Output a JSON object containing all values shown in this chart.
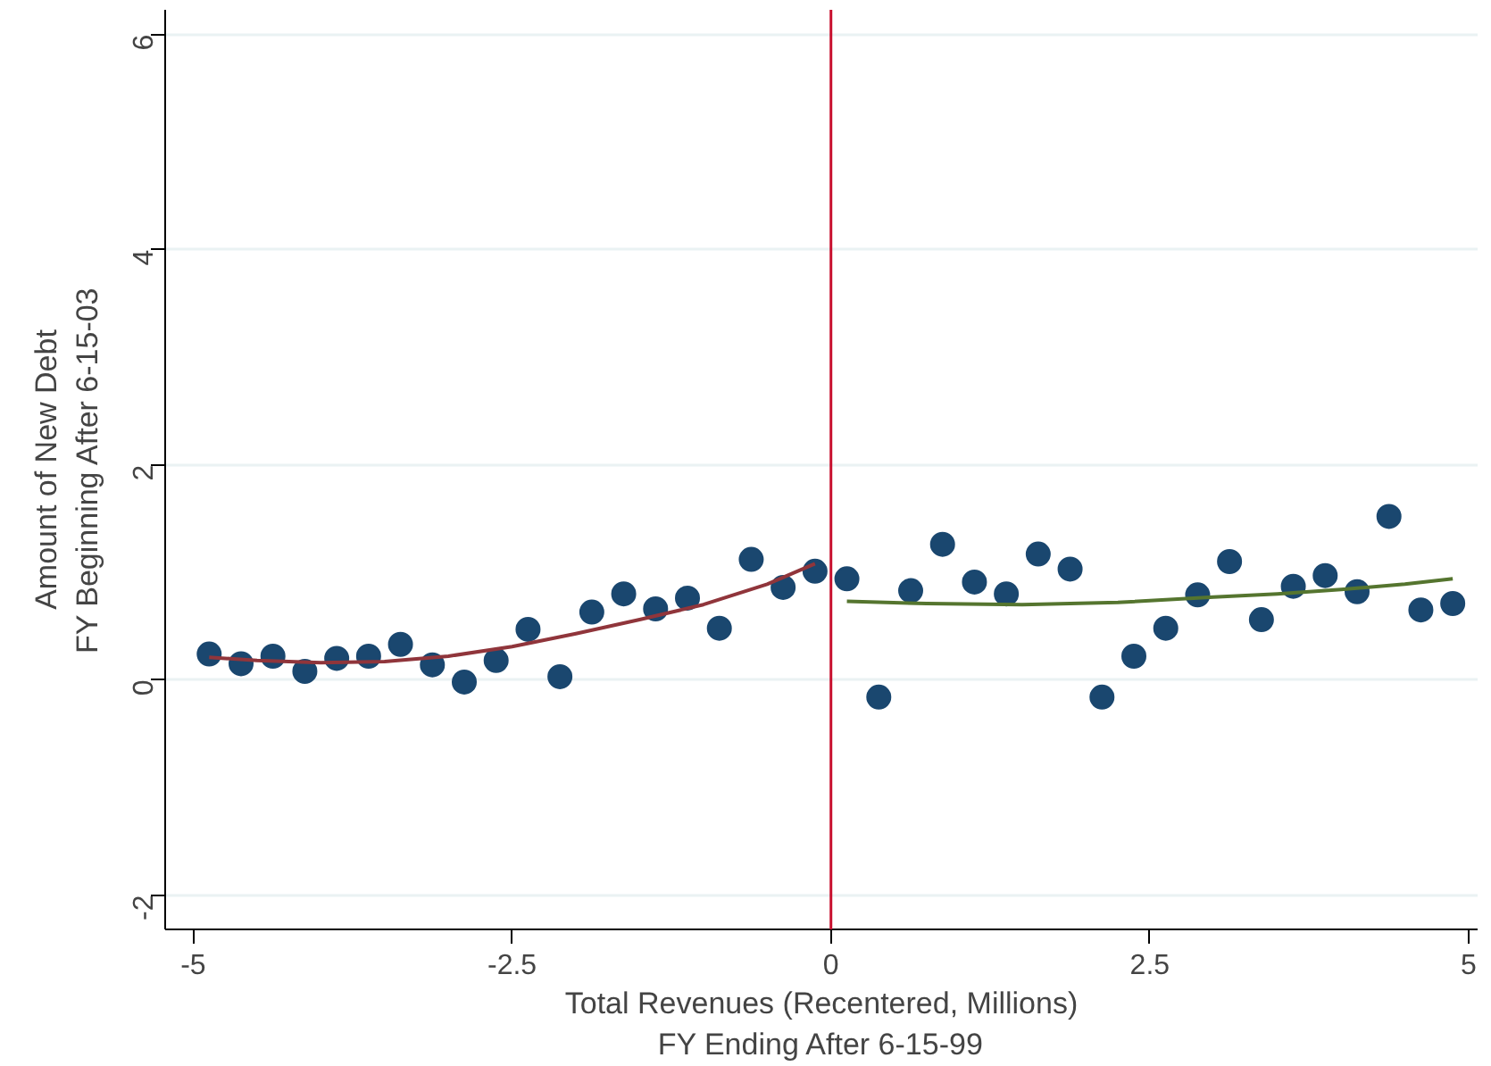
{
  "chart_data": {
    "type": "scatter",
    "xlabel": "Total Revenues (Recentered, Millions)\nFY Ending After 6-15-99",
    "ylabel": "Amount of New Debt\nFY Beginning After 6-15-03",
    "xlim": [
      -5.22,
      5.07
    ],
    "ylim": [
      -2.32,
      6.23
    ],
    "xticks": [
      {
        "value": -5,
        "label": "-5"
      },
      {
        "value": -2.5,
        "label": "-2.5"
      },
      {
        "value": 0,
        "label": "0"
      },
      {
        "value": 2.5,
        "label": "2.5"
      },
      {
        "value": 5,
        "label": "5"
      }
    ],
    "yticks": [
      -2,
      0,
      2,
      4,
      6
    ],
    "grid": "y",
    "ref_lines": [
      {
        "axis": "x",
        "value": 0,
        "color": "#c8102e"
      }
    ],
    "series": [
      {
        "marker": "circle",
        "color": "#1a476f",
        "x": [
          -4.875,
          -4.625,
          -4.375,
          -4.125,
          -3.875,
          -3.625,
          -3.375,
          -3.125,
          -2.875,
          -2.625,
          -2.375,
          -2.125,
          -1.875,
          -1.625,
          -1.375,
          -1.125,
          -0.875,
          -0.625,
          -0.375,
          -0.125,
          0.125,
          0.375,
          0.625,
          0.875,
          1.125,
          1.375,
          1.625,
          1.875,
          2.125,
          2.375,
          2.625,
          2.875,
          3.125,
          3.375,
          3.625,
          3.875,
          4.125,
          4.375,
          4.625,
          4.875
        ],
        "values": [
          0.24,
          0.15,
          0.22,
          0.08,
          0.2,
          0.22,
          0.33,
          0.14,
          -0.02,
          0.18,
          0.47,
          0.03,
          0.63,
          0.8,
          0.66,
          0.76,
          0.48,
          1.12,
          0.86,
          1.01,
          0.94,
          -0.16,
          0.83,
          1.26,
          0.91,
          0.8,
          1.17,
          1.03,
          -0.16,
          0.22,
          0.48,
          0.79,
          1.1,
          0.56,
          0.87,
          0.97,
          0.82,
          1.52,
          0.65,
          0.71
        ]
      },
      {
        "type": "line",
        "marker": "none",
        "color": "#90353b",
        "x": [
          -4.875,
          -4.5,
          -4.0,
          -3.5,
          -3.0,
          -2.5,
          -2.0,
          -1.5,
          -1.0,
          -0.5,
          -0.125
        ],
        "values": [
          0.21,
          0.18,
          0.16,
          0.17,
          0.22,
          0.31,
          0.43,
          0.56,
          0.7,
          0.89,
          1.08
        ]
      },
      {
        "type": "line",
        "marker": "none",
        "color": "#55752f",
        "x": [
          0.125,
          0.75,
          1.5,
          2.25,
          3.0,
          3.5,
          4.0,
          4.5,
          4.875
        ],
        "values": [
          0.73,
          0.71,
          0.7,
          0.72,
          0.77,
          0.8,
          0.84,
          0.89,
          0.94
        ]
      }
    ]
  }
}
